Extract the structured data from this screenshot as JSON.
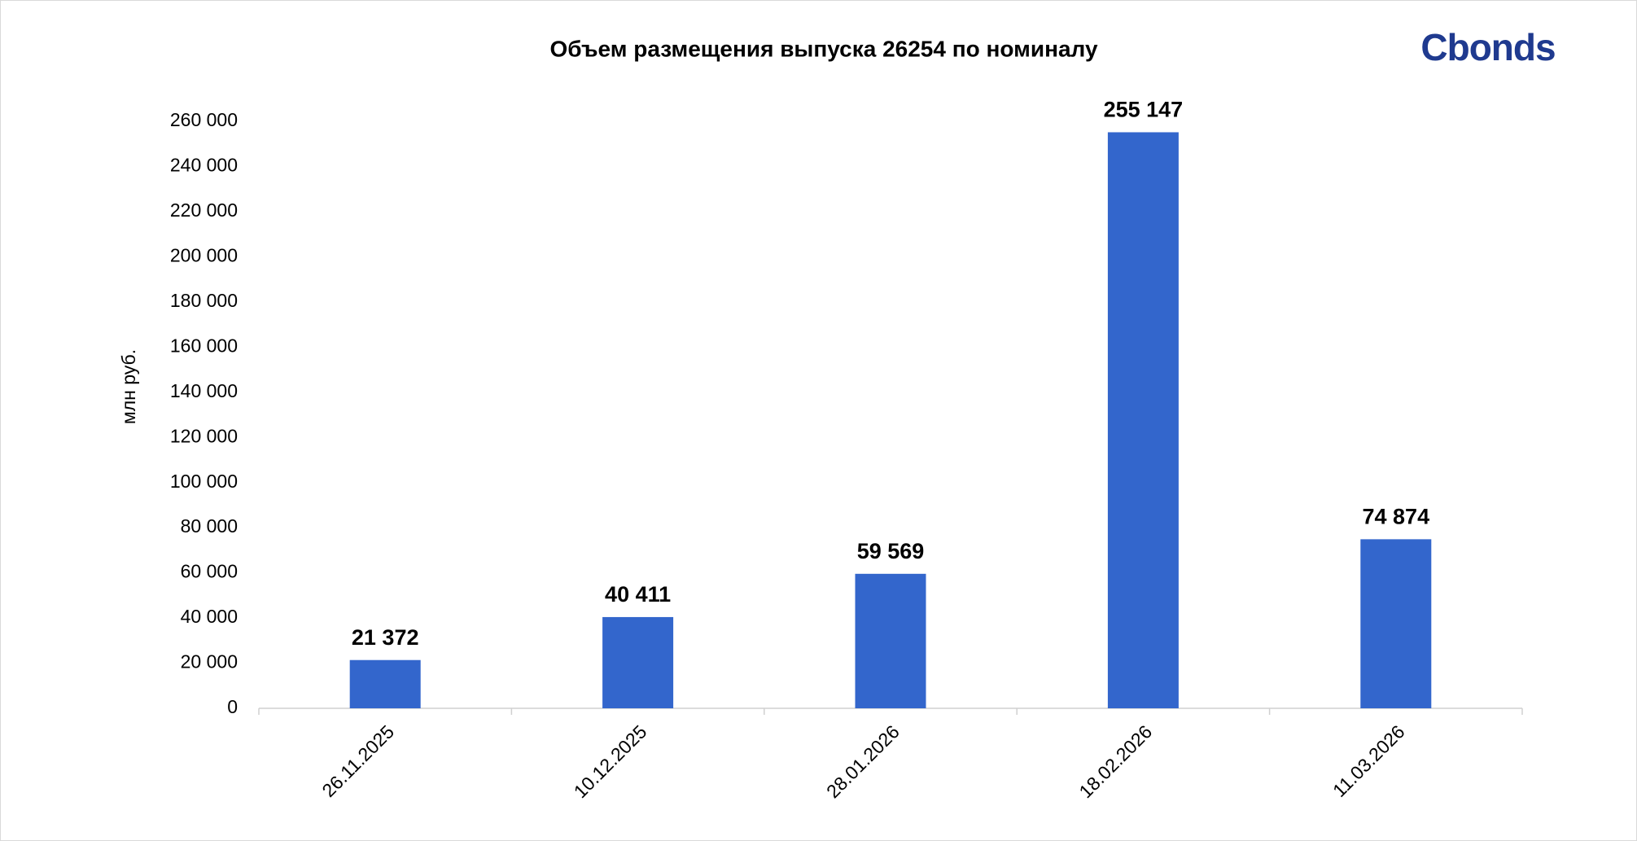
{
  "chart_data": {
    "type": "bar",
    "title": "Объем размещения выпуска 26254 по номиналу",
    "logo": "Cbonds",
    "y_label": "млн руб.",
    "categories": [
      "26.11.2025",
      "10.12.2025",
      "28.01.2026",
      "18.02.2026",
      "11.03.2026"
    ],
    "values": [
      21372,
      40411,
      59569,
      255147,
      74874
    ],
    "value_labels": [
      "21 372",
      "40 411",
      "59 569",
      "255 147",
      "74 874"
    ],
    "color": "#3366cc",
    "ylim": [
      0,
      260000
    ],
    "yticks": [
      0,
      {
        "value": 20000,
        "label": "20 000"
      },
      {
        "value": 40000,
        "label": "40 000"
      },
      {
        "value": 60000,
        "label": "60 000"
      },
      {
        "value": 80000,
        "label": "80 000"
      },
      {
        "value": 100000,
        "label": "100 000"
      },
      {
        "value": 120000,
        "label": "120 000"
      },
      {
        "value": 140000,
        "label": "140 000"
      },
      {
        "value": 160000,
        "label": "160 000"
      },
      {
        "value": 180000,
        "label": "180 000"
      },
      {
        "value": 200000,
        "label": "200 000"
      },
      {
        "value": 220000,
        "label": "220 000"
      },
      {
        "value": 240000,
        "label": "240 000"
      },
      {
        "value": 260000,
        "label": "260 000"
      }
    ],
    "grid": false
  }
}
